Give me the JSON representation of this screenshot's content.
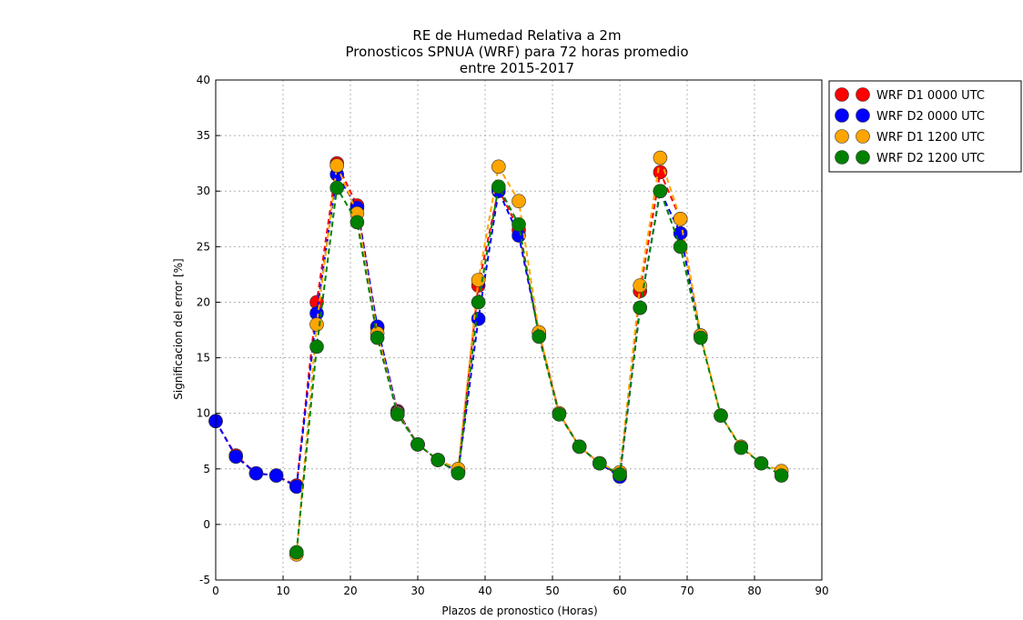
{
  "chart_data": {
    "type": "line",
    "title": [
      "RE de Humedad Relativa a 2m",
      "Pronosticos SPNUA (WRF) para 72 horas promedio",
      "entre 2015-2017"
    ],
    "xlabel": "Plazos de pronostico (Horas)",
    "ylabel": "Significacion del error [%]",
    "xlim": [
      0,
      90
    ],
    "ylim": [
      -5,
      40
    ],
    "xticks": [
      0,
      10,
      20,
      30,
      40,
      50,
      60,
      70,
      80,
      90
    ],
    "yticks": [
      -5,
      0,
      5,
      10,
      15,
      20,
      25,
      30,
      35,
      40
    ],
    "grid": true,
    "legend_position": "outside-top-right",
    "series": [
      {
        "name": "WRF D1 0000 UTC",
        "color": "#ff0000",
        "x": [
          0,
          3,
          6,
          9,
          12,
          15,
          18,
          21,
          24,
          27,
          30,
          33,
          36,
          39,
          42,
          45,
          48,
          51,
          54,
          57,
          60,
          63,
          66,
          69,
          72
        ],
        "y": [
          9.3,
          6.2,
          4.6,
          4.4,
          3.5,
          20.0,
          32.5,
          28.7,
          17.7,
          10.2,
          7.2,
          5.8,
          4.8,
          21.5,
          30.2,
          26.5,
          17.2,
          10.0,
          7.0,
          5.5,
          4.4,
          21.0,
          31.7,
          27.5,
          17.0
        ]
      },
      {
        "name": "WRF D2 0000 UTC",
        "color": "#0000ff",
        "x": [
          0,
          3,
          6,
          9,
          12,
          15,
          18,
          21,
          24,
          27,
          30,
          33,
          36,
          39,
          42,
          45,
          48,
          51,
          54,
          57,
          60,
          63,
          66,
          69,
          72
        ],
        "y": [
          9.3,
          6.1,
          4.6,
          4.4,
          3.4,
          19.0,
          31.5,
          28.5,
          17.8,
          10.1,
          7.2,
          5.8,
          4.7,
          18.5,
          30.0,
          26.0,
          17.2,
          10.0,
          7.0,
          5.5,
          4.3,
          19.5,
          30.0,
          26.2,
          17.0
        ]
      },
      {
        "name": "WRF D1 1200 UTC",
        "color": "#ffa500",
        "x": [
          12,
          15,
          18,
          21,
          24,
          27,
          30,
          33,
          36,
          39,
          42,
          45,
          48,
          51,
          54,
          57,
          60,
          63,
          66,
          69,
          72,
          75,
          78,
          81,
          84
        ],
        "y": [
          -2.7,
          18.0,
          32.3,
          28.0,
          17.2,
          10.0,
          7.2,
          5.8,
          5.0,
          22.0,
          32.2,
          29.1,
          17.3,
          10.0,
          7.0,
          5.5,
          4.7,
          21.5,
          33.0,
          27.5,
          17.0,
          9.8,
          7.0,
          5.5,
          4.8
        ]
      },
      {
        "name": "WRF D2 1200 UTC",
        "color": "#008000",
        "x": [
          12,
          15,
          18,
          21,
          24,
          27,
          30,
          33,
          36,
          39,
          42,
          45,
          48,
          51,
          54,
          57,
          60,
          63,
          66,
          69,
          72,
          75,
          78,
          81,
          84
        ],
        "y": [
          -2.5,
          16.0,
          30.3,
          27.2,
          16.8,
          9.9,
          7.2,
          5.8,
          4.6,
          20.0,
          30.4,
          27.0,
          16.9,
          9.9,
          7.0,
          5.5,
          4.5,
          19.5,
          30.0,
          25.0,
          16.8,
          9.8,
          6.9,
          5.5,
          4.4
        ]
      }
    ]
  }
}
